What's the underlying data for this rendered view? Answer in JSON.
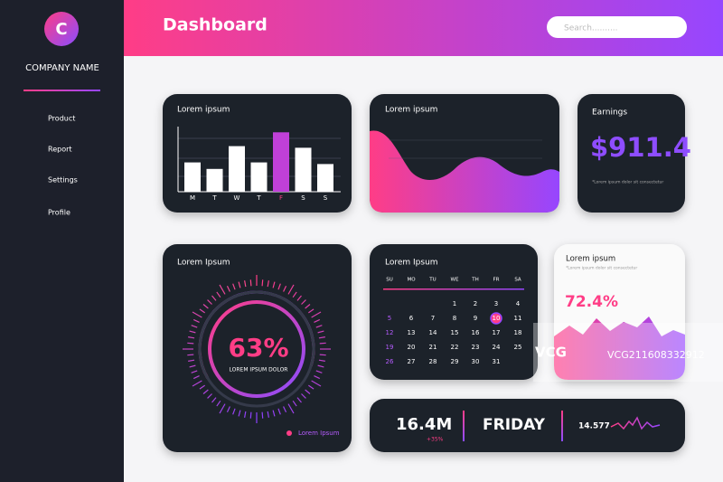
{
  "sidebar": {
    "logo": "C",
    "company": "COMPANY NAME",
    "menu": [
      "Product",
      "Report",
      "Settings",
      "Profile"
    ]
  },
  "header": {
    "title": "Dashboard",
    "search_placeholder": "Search.........."
  },
  "bar_card": {
    "title": "Lorem ipsum",
    "chart_data": {
      "type": "bar",
      "categories": [
        "M",
        "T",
        "W",
        "T",
        "F",
        "S",
        "S"
      ],
      "values": [
        36,
        28,
        56,
        36,
        73,
        54,
        34
      ],
      "colors": [
        "#ffffff",
        "#ffffff",
        "#ffffff",
        "#ffffff",
        "#c040d8",
        "#ffffff",
        "#ffffff"
      ],
      "ylim": [
        0,
        80
      ]
    }
  },
  "area_card": {
    "title": "Lorem ipsum"
  },
  "earnings_card": {
    "title": "Earnings",
    "amount": "$911.4",
    "note": "*Lorem ipsum dolor sit consectetur"
  },
  "gauge_card": {
    "title": "Lorem Ipsum",
    "gauge": {
      "value": 63,
      "value_label": "63%"
    },
    "caption": "LOREM IPSUM DOLOR",
    "legend": "Lorem Ipsum"
  },
  "calendar_card": {
    "title": "Lorem Ipsum",
    "weekdays": [
      "SU",
      "MO",
      "TU",
      "WE",
      "TH",
      "FR",
      "SA"
    ],
    "selected": 10,
    "rows": [
      [
        null,
        null,
        null,
        1,
        2,
        3,
        4
      ],
      [
        5,
        6,
        7,
        8,
        9,
        10,
        11
      ],
      [
        12,
        13,
        14,
        15,
        16,
        17,
        18
      ],
      [
        19,
        20,
        21,
        22,
        23,
        24,
        25
      ],
      [
        26,
        27,
        28,
        29,
        30,
        31,
        null
      ]
    ]
  },
  "stat_card": {
    "title": "Lorem ipsum",
    "subtitle": "*Lorem ipsum dolor sit consectetur",
    "value": "72.4%"
  },
  "footer_card": {
    "total": "16.4M",
    "change": "+35%",
    "day": "FRIDAY",
    "count": "14.577"
  },
  "watermark": {
    "brand": "VCG",
    "id": "VCG211608332912"
  }
}
